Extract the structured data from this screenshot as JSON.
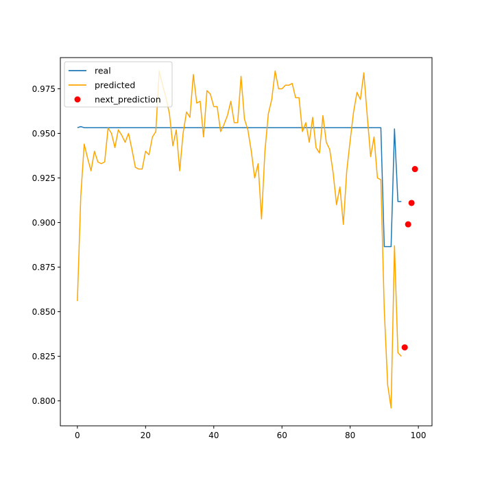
{
  "chart_data": {
    "type": "line",
    "title": "",
    "xlabel": "",
    "ylabel": "",
    "xlim": [
      -5,
      104
    ],
    "ylim": [
      0.786,
      0.9925
    ],
    "xticks": [
      0,
      20,
      40,
      60,
      80,
      100
    ],
    "yticks": [
      0.8,
      0.825,
      0.85,
      0.875,
      0.9,
      0.925,
      0.95,
      0.975
    ],
    "ytick_labels": [
      "0.800",
      "0.825",
      "0.850",
      "0.875",
      "0.900",
      "0.925",
      "0.950",
      "0.975"
    ],
    "xtick_labels": [
      "0",
      "20",
      "40",
      "60",
      "80",
      "100"
    ],
    "grid": false,
    "legend_position": "top-left",
    "series": [
      {
        "name": "real",
        "color": "#1f77b4",
        "kind": "line",
        "x": [
          0,
          1,
          2,
          3,
          4,
          5,
          10,
          20,
          30,
          40,
          50,
          60,
          70,
          80,
          85,
          89,
          90,
          91,
          92,
          93,
          94,
          95
        ],
        "y": [
          0.9532,
          0.9538,
          0.9532,
          0.9532,
          0.9532,
          0.9532,
          0.9532,
          0.9532,
          0.9532,
          0.9532,
          0.9532,
          0.9532,
          0.9532,
          0.9532,
          0.9532,
          0.9532,
          0.8865,
          0.8865,
          0.8865,
          0.9525,
          0.9118,
          0.9118
        ]
      },
      {
        "name": "predicted",
        "color": "#ffa500",
        "kind": "line",
        "x": [
          0,
          1,
          2,
          3,
          4,
          5,
          6,
          7,
          8,
          9,
          10,
          11,
          12,
          13,
          14,
          15,
          16,
          17,
          18,
          19,
          20,
          21,
          22,
          23,
          24,
          25,
          26,
          27,
          28,
          29,
          30,
          31,
          32,
          33,
          34,
          35,
          36,
          37,
          38,
          39,
          40,
          41,
          42,
          43,
          44,
          45,
          46,
          47,
          48,
          49,
          50,
          51,
          52,
          53,
          54,
          55,
          56,
          57,
          58,
          59,
          60,
          61,
          62,
          63,
          64,
          65,
          66,
          67,
          68,
          69,
          70,
          71,
          72,
          73,
          74,
          75,
          76,
          77,
          78,
          79,
          80,
          81,
          82,
          83,
          84,
          85,
          86,
          87,
          88,
          89,
          90,
          91,
          92,
          93,
          94,
          95
        ],
        "y": [
          0.856,
          0.915,
          0.944,
          0.936,
          0.929,
          0.94,
          0.934,
          0.933,
          0.934,
          0.953,
          0.95,
          0.942,
          0.952,
          0.949,
          0.945,
          0.95,
          0.941,
          0.931,
          0.93,
          0.93,
          0.94,
          0.938,
          0.948,
          0.951,
          0.985,
          0.977,
          0.97,
          0.961,
          0.943,
          0.952,
          0.929,
          0.95,
          0.962,
          0.959,
          0.983,
          0.967,
          0.968,
          0.948,
          0.974,
          0.972,
          0.965,
          0.965,
          0.951,
          0.955,
          0.96,
          0.968,
          0.956,
          0.956,
          0.982,
          0.958,
          0.952,
          0.94,
          0.925,
          0.933,
          0.902,
          0.94,
          0.961,
          0.969,
          0.985,
          0.975,
          0.975,
          0.977,
          0.977,
          0.978,
          0.97,
          0.97,
          0.951,
          0.956,
          0.945,
          0.959,
          0.942,
          0.939,
          0.96,
          0.945,
          0.941,
          0.928,
          0.91,
          0.92,
          0.899,
          0.929,
          0.946,
          0.962,
          0.973,
          0.969,
          0.984,
          0.96,
          0.937,
          0.948,
          0.925,
          0.924,
          0.851,
          0.809,
          0.796,
          0.887,
          0.827,
          0.825
        ]
      },
      {
        "name": "next_prediction",
        "color": "#ff0000",
        "kind": "scatter",
        "x": [
          96,
          97,
          98,
          99
        ],
        "y": [
          0.83,
          0.899,
          0.911,
          0.93
        ]
      }
    ]
  }
}
